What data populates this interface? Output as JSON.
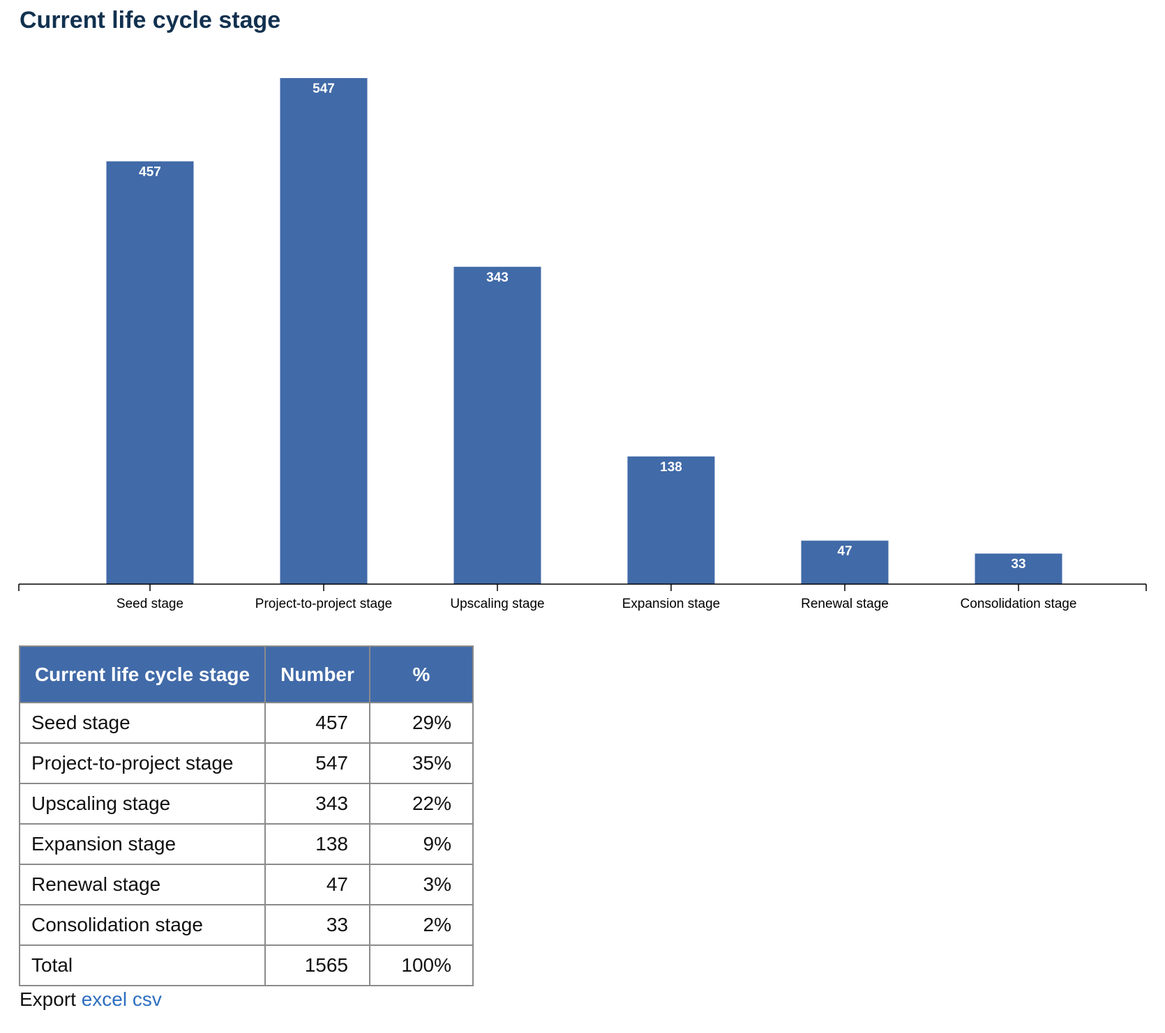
{
  "page": {
    "title": "Current life cycle stage"
  },
  "colors": {
    "title": "#12314f",
    "bar": "#416aa8",
    "header_bg": "#416aa8",
    "link": "#2f6fbf"
  },
  "chart_data": {
    "type": "bar",
    "categories": [
      "Seed stage",
      "Project-to-project stage",
      "Upscaling stage",
      "Expansion stage",
      "Renewal stage",
      "Consolidation stage"
    ],
    "values": [
      457,
      547,
      343,
      138,
      47,
      33
    ],
    "title": "",
    "xlabel": "",
    "ylabel": "",
    "ylim": [
      0,
      547
    ],
    "grid": false,
    "legend": "none",
    "data_labels": "inside-top"
  },
  "table": {
    "headers": [
      "Current life cycle stage",
      "Number",
      "%"
    ],
    "rows": [
      [
        "Seed stage",
        "457",
        "29%"
      ],
      [
        "Project-to-project stage",
        "547",
        "35%"
      ],
      [
        "Upscaling stage",
        "343",
        "22%"
      ],
      [
        "Expansion stage",
        "138",
        "9%"
      ],
      [
        "Renewal stage",
        "47",
        "3%"
      ],
      [
        "Consolidation stage",
        "33",
        "2%"
      ],
      [
        "Total",
        "1565",
        "100%"
      ]
    ]
  },
  "export": {
    "label": "Export",
    "links": [
      "excel",
      "csv"
    ]
  }
}
